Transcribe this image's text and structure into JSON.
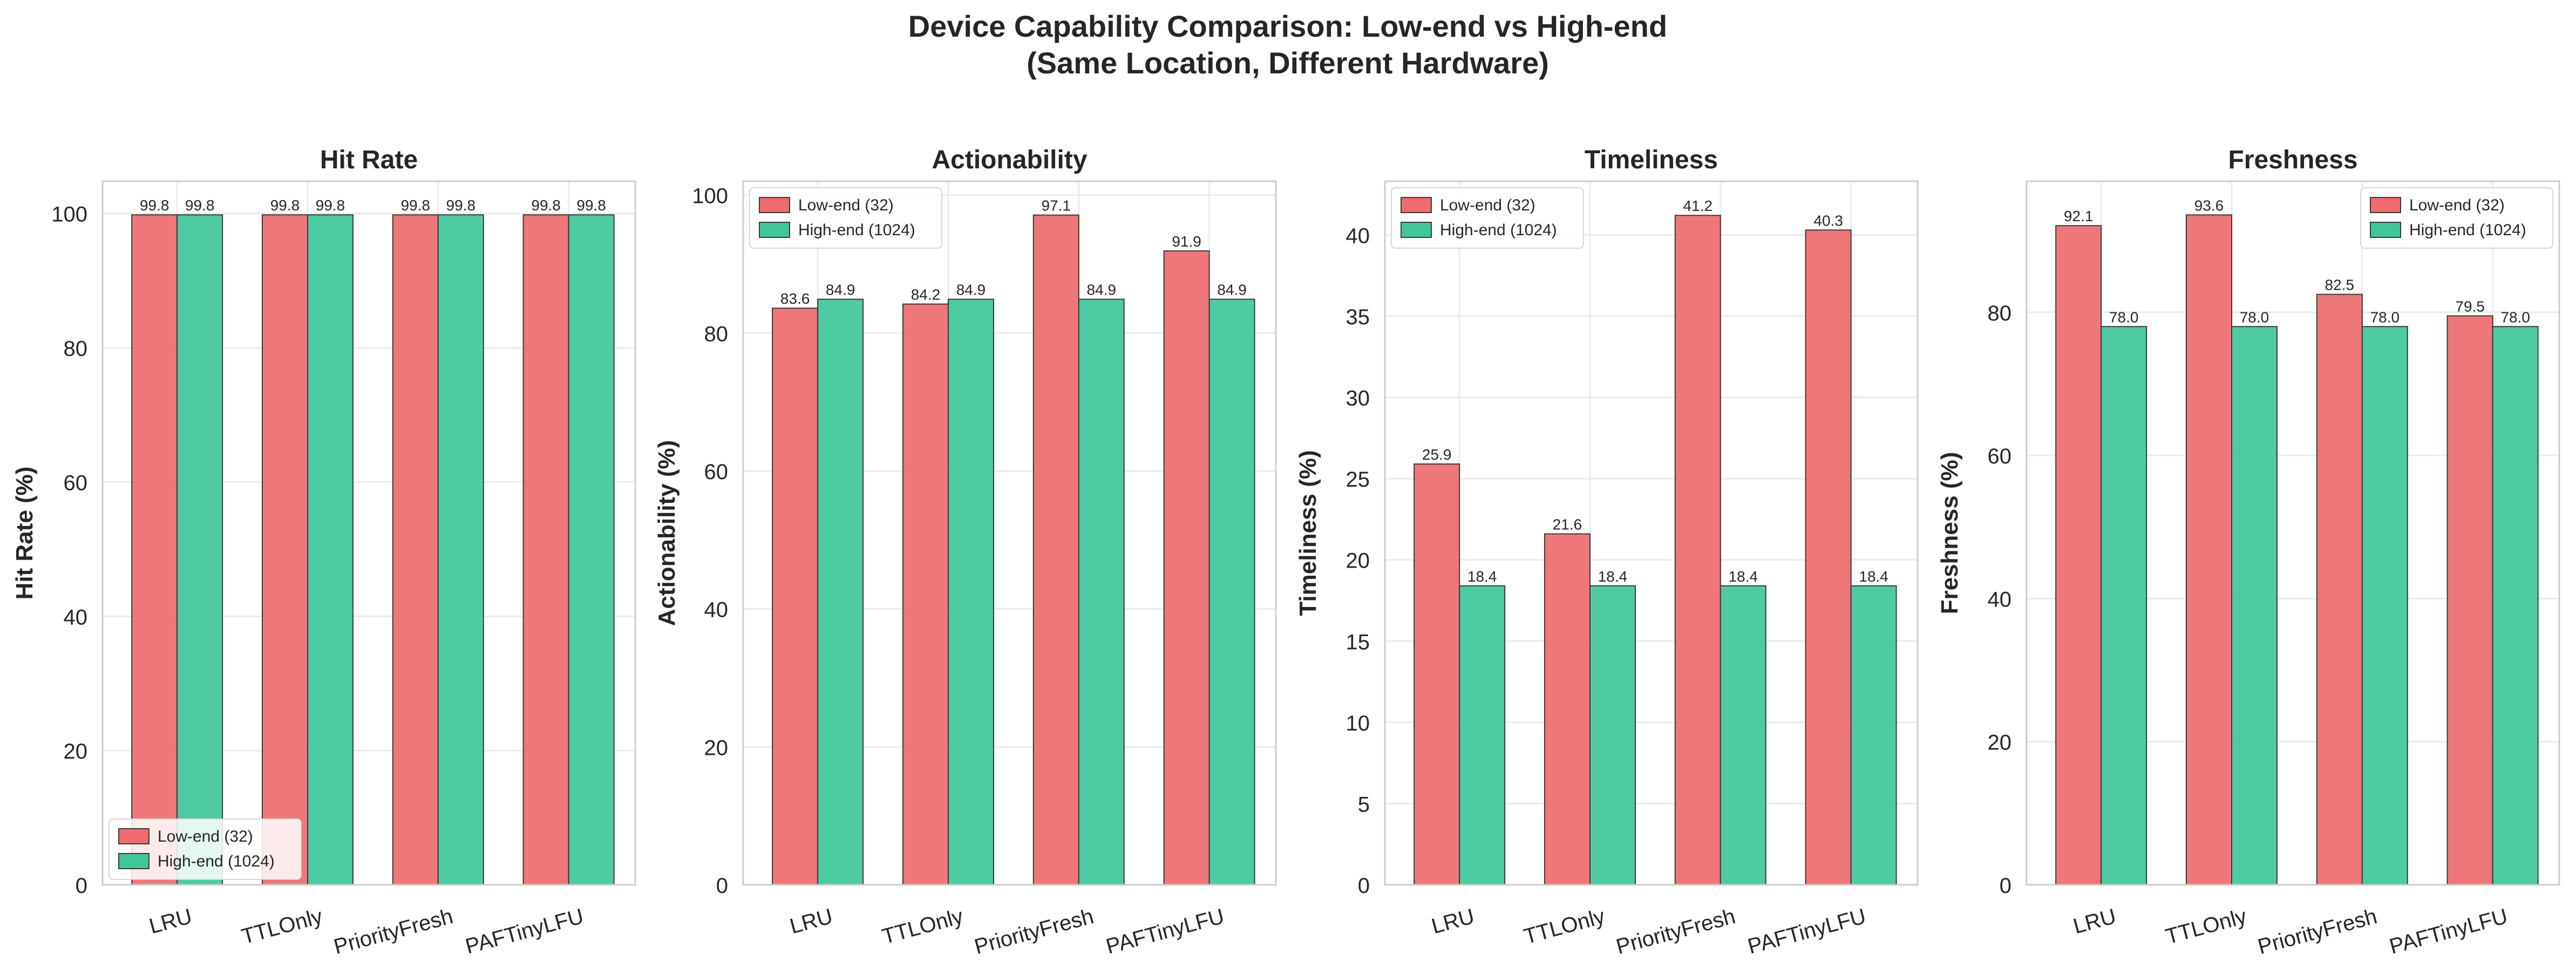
{
  "figure": {
    "title_line1": "Device Capability Comparison: Low-end vs High-end",
    "title_line2": "(Same Location, Different Hardware)"
  },
  "colors": {
    "low": "#ef6b6e",
    "high": "#3fc79a",
    "grid": "#ebebeb",
    "frame": "#cccccc",
    "text": "#262626"
  },
  "chart_data": [
    {
      "type": "bar",
      "title": "Hit Rate",
      "ylabel": "Hit Rate (%)",
      "categories": [
        "LRU",
        "TTLOnly",
        "PriorityFresh",
        "PAFTinyLFU"
      ],
      "series": [
        {
          "name": "Low-end (32)",
          "values": [
            99.8,
            99.8,
            99.8,
            99.8
          ]
        },
        {
          "name": "High-end (1024)",
          "values": [
            99.8,
            99.8,
            99.8,
            99.8
          ]
        }
      ],
      "data_labels": [
        [
          "99.8",
          "99.8",
          "99.8",
          "99.8"
        ],
        [
          "99.8",
          "99.8",
          "99.8",
          "99.8"
        ]
      ],
      "ylim": [
        0,
        104.8
      ],
      "yticks": [
        0,
        20,
        40,
        60,
        80,
        100
      ],
      "ytick_labels": [
        "0",
        "20",
        "40",
        "60",
        "80",
        "100"
      ],
      "grid": true,
      "legend": "lower-left"
    },
    {
      "type": "bar",
      "title": "Actionability",
      "ylabel": "Actionability (%)",
      "categories": [
        "LRU",
        "TTLOnly",
        "PriorityFresh",
        "PAFTinyLFU"
      ],
      "series": [
        {
          "name": "Low-end (32)",
          "values": [
            83.6,
            84.2,
            97.1,
            91.9
          ]
        },
        {
          "name": "High-end (1024)",
          "values": [
            84.9,
            84.9,
            84.9,
            84.9
          ]
        }
      ],
      "data_labels": [
        [
          "83.6",
          "84.2",
          "97.1",
          "91.9"
        ],
        [
          "84.9",
          "84.9",
          "84.9",
          "84.9"
        ]
      ],
      "ylim": [
        0,
        102
      ],
      "yticks": [
        0,
        20,
        40,
        60,
        80,
        100
      ],
      "ytick_labels": [
        "0",
        "20",
        "40",
        "60",
        "80",
        "100"
      ],
      "grid": true,
      "legend": "upper-left"
    },
    {
      "type": "bar",
      "title": "Timeliness",
      "ylabel": "Timeliness (%)",
      "categories": [
        "LRU",
        "TTLOnly",
        "PriorityFresh",
        "PAFTinyLFU"
      ],
      "series": [
        {
          "name": "Low-end (32)",
          "values": [
            25.9,
            21.6,
            41.2,
            40.3
          ]
        },
        {
          "name": "High-end (1024)",
          "values": [
            18.4,
            18.4,
            18.4,
            18.4
          ]
        }
      ],
      "data_labels": [
        [
          "25.9",
          "21.6",
          "41.2",
          "40.3"
        ],
        [
          "18.4",
          "18.4",
          "18.4",
          "18.4"
        ]
      ],
      "ylim": [
        0,
        43.3
      ],
      "yticks": [
        0,
        5,
        10,
        15,
        20,
        25,
        30,
        35,
        40
      ],
      "ytick_labels": [
        "0",
        "5",
        "10",
        "15",
        "20",
        "25",
        "30",
        "35",
        "40"
      ],
      "grid": true,
      "legend": "upper-left"
    },
    {
      "type": "bar",
      "title": "Freshness",
      "ylabel": "Freshness (%)",
      "categories": [
        "LRU",
        "TTLOnly",
        "PriorityFresh",
        "PAFTinyLFU"
      ],
      "series": [
        {
          "name": "Low-end (32)",
          "values": [
            92.1,
            93.6,
            82.5,
            79.5
          ]
        },
        {
          "name": "High-end (1024)",
          "values": [
            78.0,
            78.0,
            78.0,
            78.0
          ]
        }
      ],
      "data_labels": [
        [
          "92.1",
          "93.6",
          "82.5",
          "79.5"
        ],
        [
          "78.0",
          "78.0",
          "78.0",
          "78.0"
        ]
      ],
      "ylim": [
        0,
        98.3
      ],
      "yticks": [
        0,
        20,
        40,
        60,
        80
      ],
      "ytick_labels": [
        "0",
        "20",
        "40",
        "60",
        "80"
      ],
      "grid": true,
      "legend": "upper-right"
    }
  ]
}
